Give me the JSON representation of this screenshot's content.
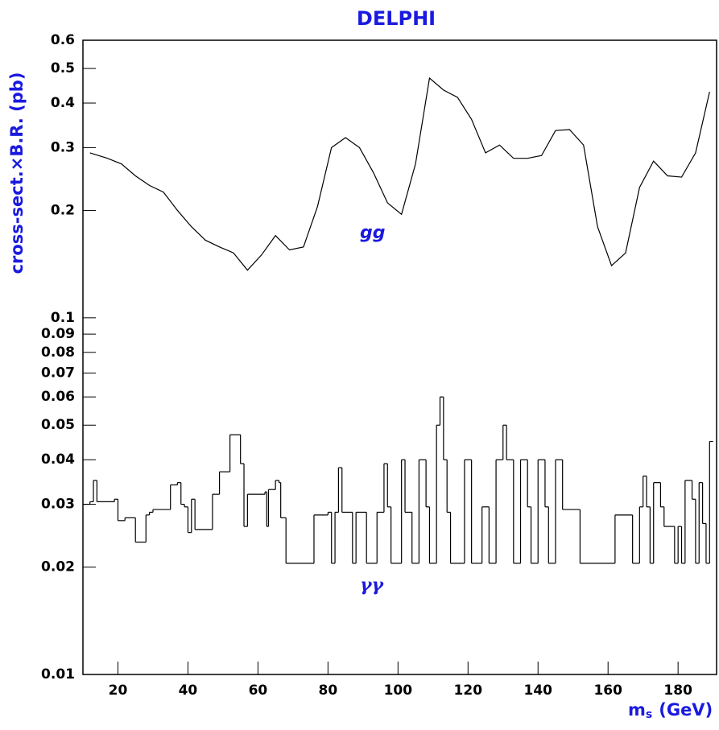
{
  "chart_data": {
    "type": "line",
    "title": "DELPHI",
    "y_label": "cross-sect.×B.R. (pb)",
    "x_label_symbol": "m",
    "x_label_subscript": "s",
    "x_label_unit": "(GeV)",
    "log_y": true,
    "xlim": [
      10,
      191
    ],
    "xticks": [
      20,
      40,
      60,
      80,
      100,
      120,
      140,
      160,
      180
    ],
    "ylim": [
      0.01,
      0.6
    ],
    "yticks": [
      0.01,
      0.02,
      0.03,
      0.04,
      0.05,
      0.06,
      0.07,
      0.08,
      0.09,
      0.1,
      0.2,
      0.3,
      0.4,
      0.5,
      0.6
    ],
    "series": [
      {
        "name": "gg",
        "color": "#000000",
        "step": false,
        "x": [
          12,
          17,
          21,
          25,
          29,
          33,
          37,
          41,
          45,
          49,
          53,
          57,
          61,
          65,
          69,
          73,
          77,
          81,
          85,
          89,
          93,
          97,
          101,
          105,
          109,
          113,
          117,
          121,
          125,
          129,
          133,
          137,
          141,
          145,
          149,
          153,
          157,
          161,
          165,
          169,
          173,
          177,
          181,
          185,
          189
        ],
        "values": [
          0.29,
          0.28,
          0.27,
          0.25,
          0.235,
          0.225,
          0.2,
          0.18,
          0.165,
          0.158,
          0.152,
          0.136,
          0.15,
          0.17,
          0.155,
          0.158,
          0.205,
          0.3,
          0.32,
          0.3,
          0.255,
          0.21,
          0.195,
          0.27,
          0.47,
          0.435,
          0.415,
          0.36,
          0.29,
          0.305,
          0.28,
          0.28,
          0.285,
          0.335,
          0.337,
          0.305,
          0.18,
          0.14,
          0.152,
          0.232,
          0.275,
          0.25,
          0.248,
          0.29,
          0.43
        ]
      },
      {
        "name": "γγ",
        "color": "#000000",
        "step": true,
        "x": [
          10,
          12,
          13,
          14,
          19,
          20,
          22,
          25,
          28,
          29,
          30,
          35,
          37,
          38,
          39,
          40,
          41,
          42,
          47,
          49,
          52,
          55,
          56,
          57,
          62,
          62.5,
          63,
          65,
          66,
          66.5,
          68,
          76,
          80,
          81,
          82,
          83,
          84,
          87,
          88,
          91,
          94,
          96,
          97,
          98,
          101,
          102,
          104,
          106,
          108,
          109,
          111,
          112,
          113,
          114,
          115,
          119,
          121,
          124,
          126,
          128,
          130,
          131,
          133,
          135,
          137,
          138,
          140,
          142,
          143,
          145,
          147,
          152,
          162,
          167,
          169,
          170,
          171,
          172,
          173,
          175,
          176,
          179,
          180,
          181,
          182,
          184,
          185,
          186,
          187,
          188,
          189,
          190
        ],
        "values": [
          0.03,
          0.0305,
          0.035,
          0.0305,
          0.031,
          0.027,
          0.0275,
          0.0235,
          0.028,
          0.0285,
          0.029,
          0.034,
          0.0345,
          0.03,
          0.0295,
          0.025,
          0.031,
          0.0255,
          0.032,
          0.037,
          0.047,
          0.039,
          0.026,
          0.032,
          0.0325,
          0.026,
          0.033,
          0.035,
          0.0345,
          0.0275,
          0.0205,
          0.028,
          0.0285,
          0.0205,
          0.0285,
          0.038,
          0.0285,
          0.0205,
          0.0285,
          0.0205,
          0.0285,
          0.039,
          0.0295,
          0.0205,
          0.04,
          0.0285,
          0.0205,
          0.04,
          0.0295,
          0.0205,
          0.05,
          0.06,
          0.04,
          0.0285,
          0.0205,
          0.04,
          0.0205,
          0.0295,
          0.0205,
          0.04,
          0.05,
          0.04,
          0.0205,
          0.04,
          0.0295,
          0.0205,
          0.04,
          0.0295,
          0.0205,
          0.04,
          0.029,
          0.0205,
          0.028,
          0.0205,
          0.0295,
          0.036,
          0.0295,
          0.0205,
          0.0345,
          0.0295,
          0.026,
          0.0205,
          0.026,
          0.0205,
          0.035,
          0.031,
          0.0205,
          0.0345,
          0.0265,
          0.0205,
          0.045,
          0.045
        ]
      }
    ],
    "annotations": [
      "gg",
      "γγ"
    ]
  }
}
